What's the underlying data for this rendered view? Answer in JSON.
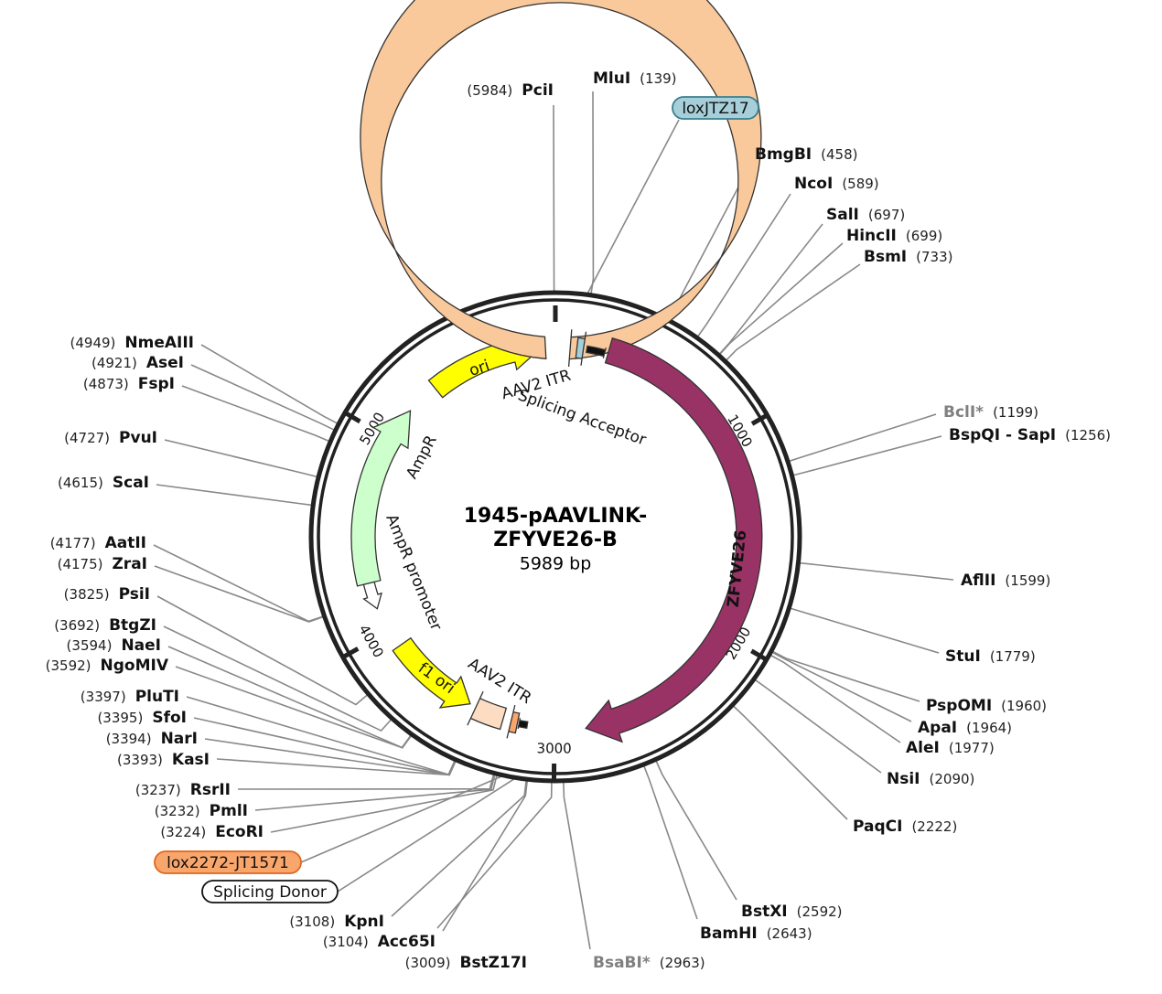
{
  "title_lines": [
    "1945-pAAVLINK-",
    "ZFYVE26-B"
  ],
  "size": "5989 bp",
  "ticks": [
    1000,
    2000,
    3000,
    4000,
    5000
  ],
  "features": [
    {
      "label": "ori",
      "color": "#ffff00"
    },
    {
      "label": "AmpR",
      "color": "#ccffcc"
    },
    {
      "label": "AmpR promoter",
      "color": "#ffffff"
    },
    {
      "label": "f1 ori",
      "color": "#ffff00"
    },
    {
      "label": "AAV2 ITR",
      "color": "#f9c99b"
    },
    {
      "label": "AAV2 ITR",
      "color": "#fcdcc2"
    },
    {
      "label": "ZFYVE26",
      "color": "#993366"
    },
    {
      "label": "loxJTZ17",
      "color": "#a6cfd9"
    },
    {
      "label": "lox2272-JT1571",
      "color": "#f9a66c"
    },
    {
      "label": "Splicing Acceptor",
      "color": "#111111"
    },
    {
      "label": "Splicing Donor",
      "color": "#111111"
    }
  ],
  "enzymes": [
    {
      "name": "PciI",
      "position": "(5984)"
    },
    {
      "name": "MluI",
      "position": "(139)"
    },
    {
      "name": "BmgBI",
      "position": "(458)"
    },
    {
      "name": "NcoI",
      "position": "(589)"
    },
    {
      "name": "SalI",
      "position": "(697)"
    },
    {
      "name": "HincII",
      "position": "(699)"
    },
    {
      "name": "BsmI",
      "position": "(733)"
    },
    {
      "name": "BclI*",
      "position": "(1199)",
      "color": "#808080"
    },
    {
      "name": "BspQI - SapI",
      "position": "(1256)"
    },
    {
      "name": "AflII",
      "position": "(1599)"
    },
    {
      "name": "StuI",
      "position": "(1779)"
    },
    {
      "name": "PspOMI",
      "position": "(1960)"
    },
    {
      "name": "ApaI",
      "position": "(1964)"
    },
    {
      "name": "AleI",
      "position": "(1977)"
    },
    {
      "name": "NsiI",
      "position": "(2090)"
    },
    {
      "name": "PaqCI",
      "position": "(2222)"
    },
    {
      "name": "BstXI",
      "position": "(2592)"
    },
    {
      "name": "BamHI",
      "position": "(2643)"
    },
    {
      "name": "BsaBI*",
      "position": "(2963)",
      "color": "#808080"
    },
    {
      "name": "BstZ17I",
      "position": "(3009)"
    },
    {
      "name": "Acc65I",
      "position": "(3104)"
    },
    {
      "name": "KpnI",
      "position": "(3108)"
    },
    {
      "name": "EcoRI",
      "position": "(3224)"
    },
    {
      "name": "PmlI",
      "position": "(3232)"
    },
    {
      "name": "RsrII",
      "position": "(3237)"
    },
    {
      "name": "KasI",
      "position": "(3393)"
    },
    {
      "name": "NarI",
      "position": "(3394)"
    },
    {
      "name": "SfoI",
      "position": "(3395)"
    },
    {
      "name": "PluTI",
      "position": "(3397)"
    },
    {
      "name": "NgoMIV",
      "position": "(3592)"
    },
    {
      "name": "NaeI",
      "position": "(3594)"
    },
    {
      "name": "BtgZI",
      "position": "(3692)"
    },
    {
      "name": "PsiI",
      "position": "(3825)"
    },
    {
      "name": "ZraI",
      "position": "(4175)"
    },
    {
      "name": "AatII",
      "position": "(4177)"
    },
    {
      "name": "ScaI",
      "position": "(4615)"
    },
    {
      "name": "PvuI",
      "position": "(4727)"
    },
    {
      "name": "FspI",
      "position": "(4873)"
    },
    {
      "name": "AseI",
      "position": "(4921)"
    },
    {
      "name": "NmeAIII",
      "position": "(4949)"
    }
  ]
}
